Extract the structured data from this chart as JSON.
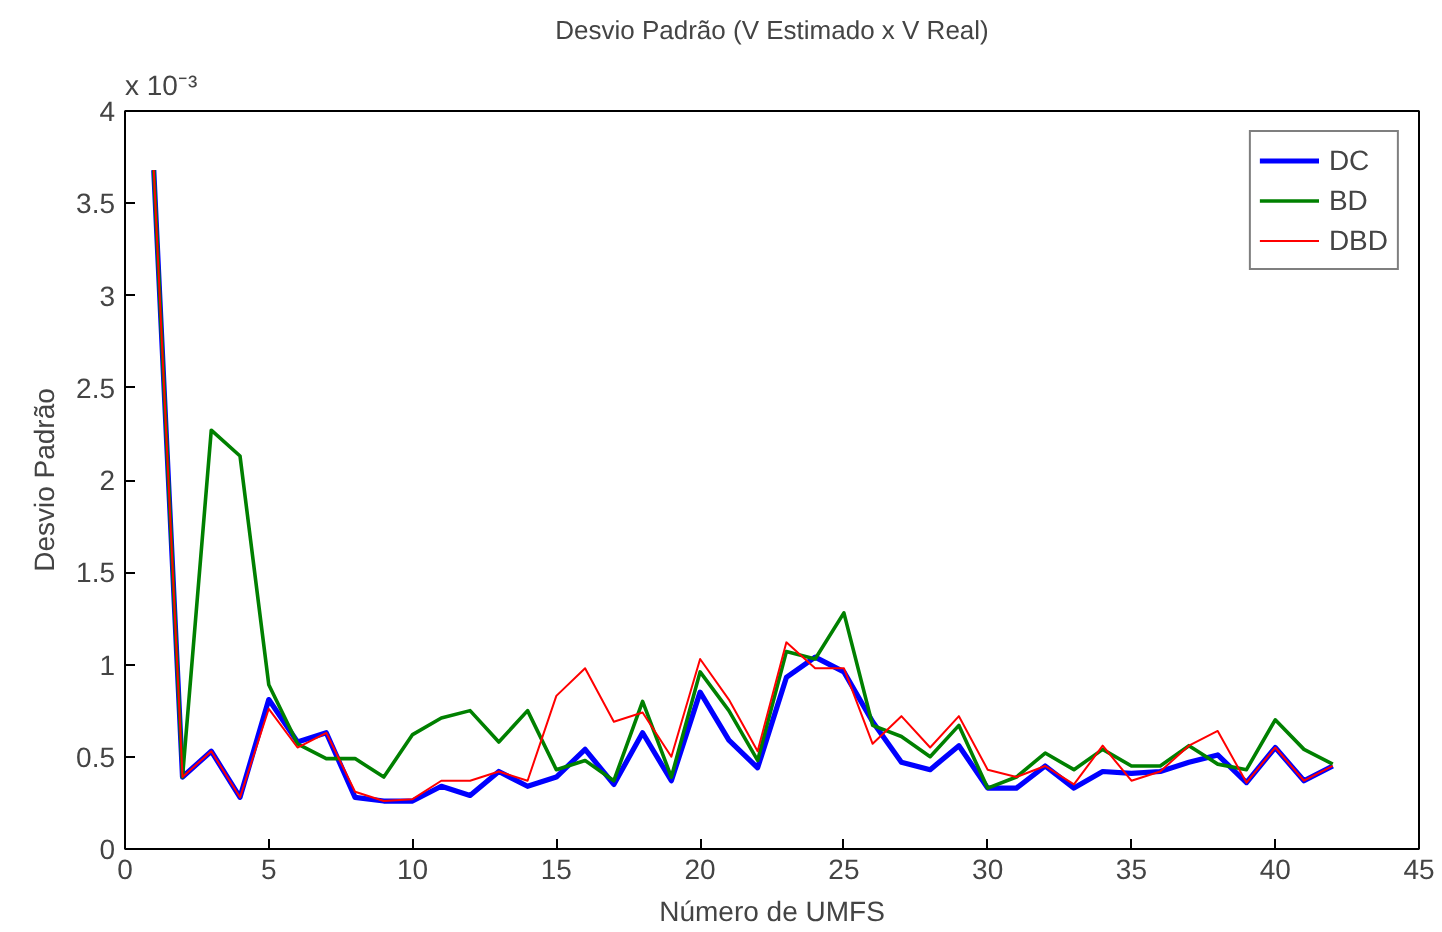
{
  "chart_data": {
    "type": "line",
    "title": "Desvio Padrão (V Estimado x V Real)",
    "xlabel": "Número de UMFS",
    "ylabel": "Desvio Padrão",
    "annotations": [
      "x 10⁻³"
    ],
    "x": [
      1,
      2,
      3,
      4,
      5,
      6,
      7,
      8,
      9,
      10,
      11,
      12,
      13,
      14,
      15,
      16,
      17,
      18,
      19,
      20,
      21,
      22,
      23,
      24,
      25,
      26,
      27,
      28,
      29,
      30,
      31,
      32,
      33,
      34,
      35,
      36,
      37,
      38,
      39,
      40,
      41,
      42
    ],
    "series": [
      {
        "name": "DC",
        "color": "#0000ff",
        "values": [
          3.68,
          0.39,
          0.53,
          0.28,
          0.81,
          0.58,
          0.63,
          0.28,
          0.26,
          0.26,
          0.34,
          0.29,
          0.42,
          0.34,
          0.39,
          0.54,
          0.35,
          0.63,
          0.37,
          0.85,
          0.59,
          0.44,
          0.93,
          1.04,
          0.96,
          0.69,
          0.47,
          0.43,
          0.56,
          0.33,
          0.33,
          0.45,
          0.33,
          0.42,
          0.41,
          0.42,
          0.47,
          0.51,
          0.36,
          0.55,
          0.37,
          0.45
        ]
      },
      {
        "name": "BD",
        "color": "#008000",
        "values": [
          3.68,
          0.39,
          2.27,
          2.13,
          0.89,
          0.57,
          0.49,
          0.49,
          0.39,
          0.62,
          0.71,
          0.75,
          0.58,
          0.75,
          0.43,
          0.48,
          0.37,
          0.8,
          0.39,
          0.96,
          0.75,
          0.48,
          1.07,
          1.03,
          1.28,
          0.67,
          0.61,
          0.5,
          0.67,
          0.33,
          0.39,
          0.52,
          0.43,
          0.54,
          0.45,
          0.45,
          0.56,
          0.46,
          0.43,
          0.7,
          0.54,
          0.46
        ]
      },
      {
        "name": "DBD",
        "color": "#ff0000",
        "values": [
          3.68,
          0.39,
          0.53,
          0.28,
          0.76,
          0.55,
          0.63,
          0.31,
          0.26,
          0.27,
          0.37,
          0.37,
          0.42,
          0.37,
          0.83,
          0.98,
          0.69,
          0.74,
          0.5,
          1.03,
          0.81,
          0.53,
          1.12,
          0.98,
          0.98,
          0.57,
          0.72,
          0.55,
          0.72,
          0.43,
          0.39,
          0.45,
          0.35,
          0.56,
          0.37,
          0.42,
          0.56,
          0.64,
          0.36,
          0.55,
          0.37,
          0.45
        ]
      }
    ],
    "xlim": [
      0,
      45
    ],
    "ylim": [
      0,
      4
    ],
    "xticks": [
      0,
      5,
      10,
      15,
      20,
      25,
      30,
      35,
      40,
      45
    ],
    "yticks": [
      0,
      0.5,
      1,
      1.5,
      2,
      2.5,
      3,
      3.5,
      4
    ],
    "grid": false,
    "legend": "top right",
    "marker": "none",
    "line_style": "solid"
  }
}
